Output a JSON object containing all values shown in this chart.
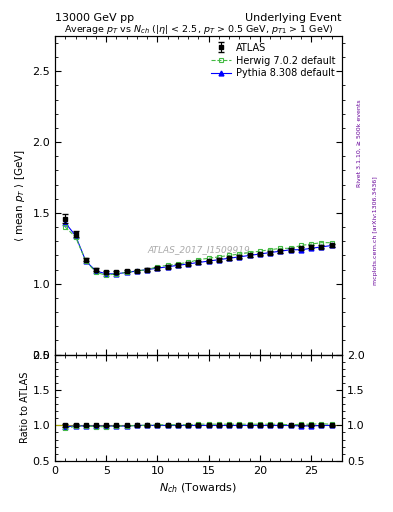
{
  "title_left": "13000 GeV pp",
  "title_right": "Underlying Event",
  "plot_title": "Average $p_T$ vs $N_{ch}$ ($|\\eta|$ < 2.5, $p_T$ > 0.5 GeV, $p_{T1}$ > 1 GeV)",
  "ylabel_main": "$\\langle$ mean $p_T$ $\\rangle$ [GeV]",
  "ylabel_ratio": "Ratio to ATLAS",
  "xlabel": "$N_{ch}$ (Towards)",
  "watermark": "ATLAS_2017_I1509919",
  "right_label_top": "Rivet 3.1.10, ≥ 500k events",
  "right_label_bottom": "mcplots.cern.ch [arXiv:1306.3436]",
  "atlas_x": [
    1,
    2,
    3,
    4,
    5,
    6,
    7,
    8,
    9,
    10,
    11,
    12,
    13,
    14,
    15,
    16,
    17,
    18,
    19,
    20,
    21,
    22,
    23,
    24,
    25,
    26,
    27
  ],
  "atlas_y": [
    1.46,
    1.35,
    1.17,
    1.1,
    1.08,
    1.08,
    1.09,
    1.09,
    1.1,
    1.11,
    1.12,
    1.13,
    1.14,
    1.15,
    1.16,
    1.17,
    1.18,
    1.19,
    1.2,
    1.21,
    1.22,
    1.23,
    1.24,
    1.25,
    1.26,
    1.26,
    1.27
  ],
  "atlas_yerr": [
    0.03,
    0.02,
    0.01,
    0.01,
    0.01,
    0.01,
    0.01,
    0.01,
    0.01,
    0.01,
    0.01,
    0.01,
    0.01,
    0.01,
    0.01,
    0.01,
    0.01,
    0.01,
    0.01,
    0.01,
    0.01,
    0.01,
    0.01,
    0.01,
    0.01,
    0.01,
    0.01
  ],
  "herwig_x": [
    1,
    2,
    3,
    4,
    5,
    6,
    7,
    8,
    9,
    10,
    11,
    12,
    13,
    14,
    15,
    16,
    17,
    18,
    19,
    20,
    21,
    22,
    23,
    24,
    25,
    26,
    27
  ],
  "herwig_y": [
    1.4,
    1.33,
    1.16,
    1.08,
    1.06,
    1.07,
    1.08,
    1.09,
    1.1,
    1.12,
    1.13,
    1.14,
    1.15,
    1.17,
    1.18,
    1.19,
    1.2,
    1.21,
    1.22,
    1.23,
    1.24,
    1.25,
    1.25,
    1.27,
    1.28,
    1.29,
    1.29
  ],
  "pythia_x": [
    1,
    2,
    3,
    4,
    5,
    6,
    7,
    8,
    9,
    10,
    11,
    12,
    13,
    14,
    15,
    16,
    17,
    18,
    19,
    20,
    21,
    22,
    23,
    24,
    25,
    26,
    27
  ],
  "pythia_y": [
    1.43,
    1.34,
    1.16,
    1.09,
    1.07,
    1.07,
    1.08,
    1.09,
    1.1,
    1.11,
    1.12,
    1.13,
    1.14,
    1.15,
    1.16,
    1.17,
    1.18,
    1.19,
    1.2,
    1.21,
    1.22,
    1.23,
    1.24,
    1.24,
    1.25,
    1.26,
    1.27
  ],
  "ylim_main": [
    0.5,
    2.75
  ],
  "ylim_ratio": [
    0.5,
    2.0
  ],
  "xlim": [
    0,
    28
  ],
  "yticks_main": [
    0.5,
    1.0,
    1.5,
    2.0,
    2.5
  ],
  "yticks_ratio": [
    0.5,
    1.0,
    1.5,
    2.0
  ],
  "xticks": [
    0,
    5,
    10,
    15,
    20,
    25
  ],
  "atlas_color": "black",
  "herwig_color": "#44bb44",
  "pythia_color": "blue",
  "herwig_linestyle": "--",
  "pythia_linestyle": "-",
  "background_color": "white"
}
